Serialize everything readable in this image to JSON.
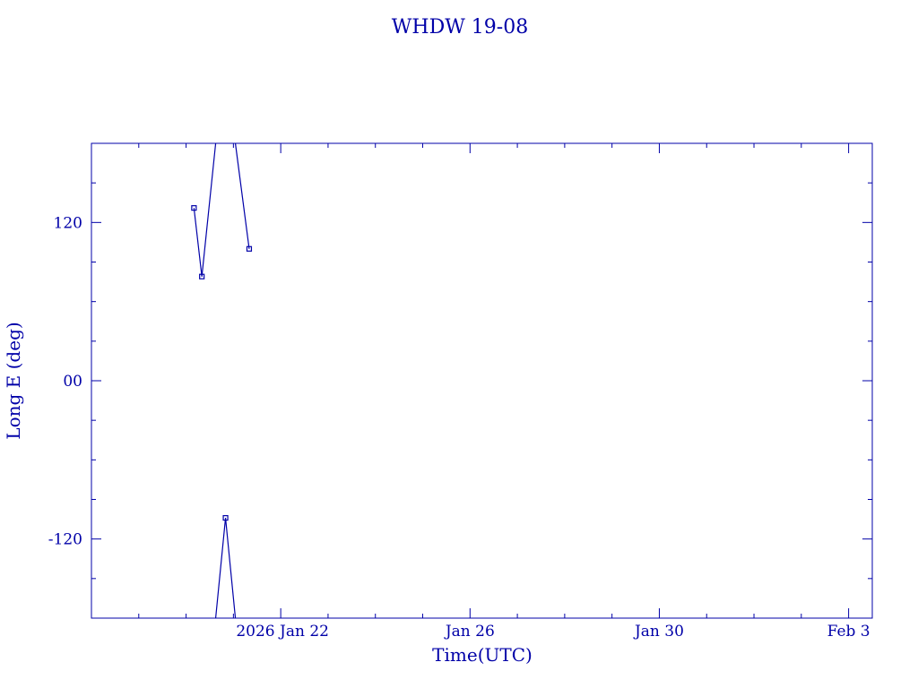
{
  "colors": {
    "ink": "#0000a8",
    "background": "#ffffff"
  },
  "chart_data": {
    "type": "line",
    "title": "WHDW 19-08",
    "xlabel": "Time(UTC)",
    "ylabel": "Long E (deg)",
    "x_tick_labels": [
      "2026 Jan 22",
      "Jan 26",
      "Jan 30",
      "Feb  3"
    ],
    "y_tick_labels": [
      "120",
      "00",
      "-120"
    ],
    "xlim": [
      "2026-01-18T00:00",
      "2026-02-03T12:00"
    ],
    "ylim": [
      -180,
      180
    ],
    "grid": false,
    "legend": "none",
    "series": [
      {
        "points": [
          {
            "t": "2026-01-20T04:00",
            "y": 131
          },
          {
            "t": "2026-01-20T08:00",
            "y": 79
          },
          {
            "t": "2026-01-20T15:00",
            "y": 180
          },
          {
            "t": "2026-01-20T15:00",
            "y": -180
          },
          {
            "t": "2026-01-20T20:00",
            "y": -104
          },
          {
            "t": "2026-01-21T01:00",
            "y": -180
          },
          {
            "t": "2026-01-21T01:00",
            "y": 180
          },
          {
            "t": "2026-01-21T08:00",
            "y": 100
          }
        ],
        "markers": [
          {
            "t": "2026-01-20T04:00",
            "y": 131
          },
          {
            "t": "2026-01-20T08:00",
            "y": 79
          },
          {
            "t": "2026-01-20T20:00",
            "y": -104
          },
          {
            "t": "2026-01-21T08:00",
            "y": 100
          }
        ]
      }
    ]
  }
}
